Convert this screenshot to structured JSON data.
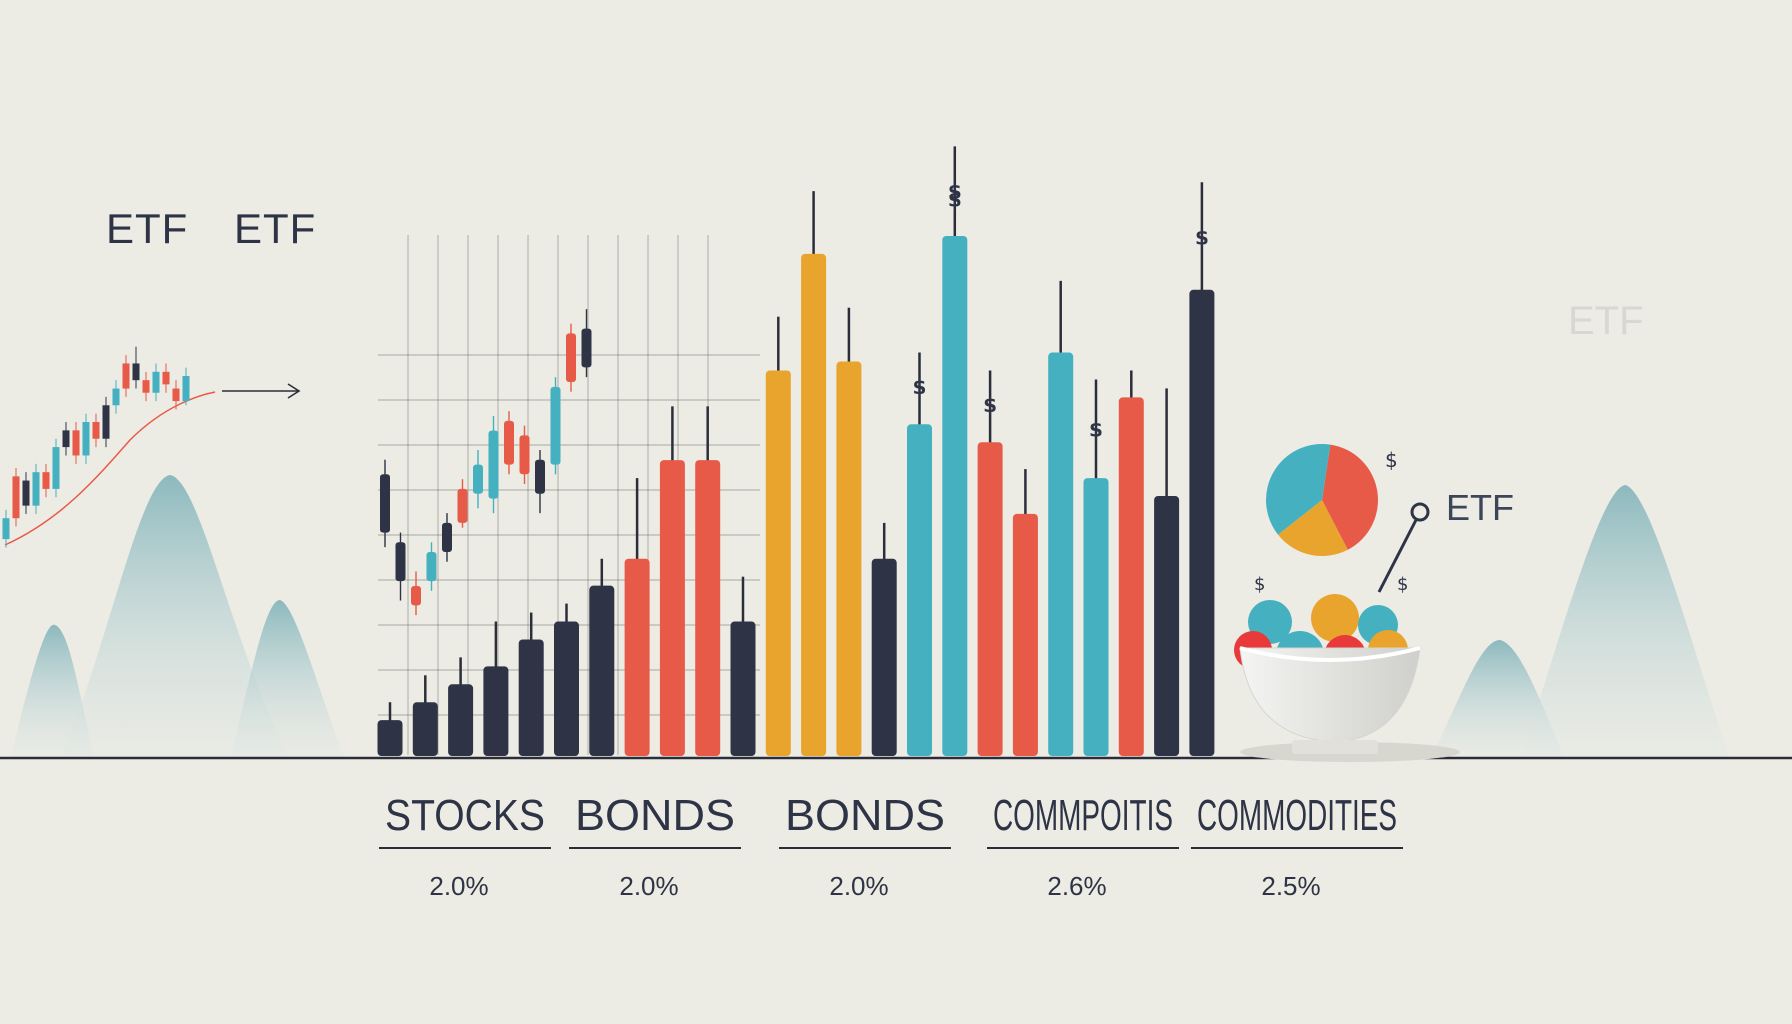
{
  "labels": {
    "etf_left_1": "ETF",
    "etf_left_2": "ETF",
    "etf_right_faded": "ETF",
    "etf_pie": "ETF",
    "dollar_signs": [
      "$",
      "$",
      "$",
      "$",
      "$",
      "$",
      "$",
      "$",
      "$"
    ]
  },
  "colors": {
    "background": "#ecebe4",
    "navy": "#2e3446",
    "red": "#e85a48",
    "orange": "#e9a42d",
    "teal": "#45b1c0",
    "mountain": "#9cc2c6",
    "baseline": "#2b2e3a"
  },
  "chart_data": {
    "type": "bar",
    "x_labels": [
      "STOCKS",
      "BONDS",
      "BONDS",
      "COMMPOITIS",
      "COMMODITIES"
    ],
    "percent_labels": [
      "2.0%",
      "2.0%",
      "2.0%",
      "2.6%",
      "2.5%"
    ],
    "bars": [
      {
        "color": "navy",
        "value": 4,
        "wick": 2
      },
      {
        "color": "navy",
        "value": 6,
        "wick": 3
      },
      {
        "color": "navy",
        "value": 8,
        "wick": 3
      },
      {
        "color": "navy",
        "value": 10,
        "wick": 5
      },
      {
        "color": "navy",
        "value": 13,
        "wick": 3
      },
      {
        "color": "navy",
        "value": 15,
        "wick": 2
      },
      {
        "color": "navy",
        "value": 19,
        "wick": 3
      },
      {
        "color": "red",
        "value": 22,
        "wick": 9
      },
      {
        "color": "red",
        "value": 33,
        "wick": 6
      },
      {
        "color": "red",
        "value": 33,
        "wick": 6
      },
      {
        "color": "navy",
        "value": 15,
        "wick": 5
      },
      {
        "color": "orange",
        "value": 43,
        "wick": 6
      },
      {
        "color": "orange",
        "value": 56,
        "wick": 7
      },
      {
        "color": "orange",
        "value": 44,
        "wick": 6
      },
      {
        "color": "navy",
        "value": 22,
        "wick": 4
      },
      {
        "color": "teal",
        "value": 37,
        "wick": 8,
        "dollar": true
      },
      {
        "color": "teal",
        "value": 58,
        "wick": 10,
        "dollar": true
      },
      {
        "color": "red",
        "value": 35,
        "wick": 8,
        "dollar": true
      },
      {
        "color": "red",
        "value": 27,
        "wick": 5
      },
      {
        "color": "teal",
        "value": 45,
        "wick": 8
      },
      {
        "color": "teal",
        "value": 31,
        "wick": 11,
        "dollar": true
      },
      {
        "color": "red",
        "value": 40,
        "wick": 3
      },
      {
        "color": "navy",
        "value": 29,
        "wick": 12
      },
      {
        "color": "navy",
        "value": 52,
        "wick": 12,
        "dollar": true
      }
    ],
    "candles_main": [
      {
        "o": 60,
        "c": 48,
        "h": 63,
        "l": 45
      },
      {
        "o": 46,
        "c": 38,
        "h": 48,
        "l": 34
      },
      {
        "o": 37,
        "c": 33,
        "h": 40,
        "l": 31
      },
      {
        "o": 38,
        "c": 44,
        "h": 46,
        "l": 36
      },
      {
        "o": 44,
        "c": 50,
        "h": 52,
        "l": 42
      },
      {
        "o": 50,
        "c": 57,
        "h": 59,
        "l": 49
      },
      {
        "o": 56,
        "c": 62,
        "h": 65,
        "l": 53
      },
      {
        "o": 55,
        "c": 69,
        "h": 72,
        "l": 52
      },
      {
        "o": 71,
        "c": 62,
        "h": 73,
        "l": 60
      },
      {
        "o": 68,
        "c": 60,
        "h": 70,
        "l": 58
      },
      {
        "o": 63,
        "c": 56,
        "h": 65,
        "l": 52
      },
      {
        "o": 62,
        "c": 78,
        "h": 80,
        "l": 60
      },
      {
        "o": 79,
        "c": 89,
        "h": 91,
        "l": 77
      },
      {
        "o": 90,
        "c": 82,
        "h": 94,
        "l": 80
      }
    ],
    "candles_small": [
      {
        "o": 50,
        "c": 55,
        "h": 57,
        "l": 48
      },
      {
        "o": 55,
        "c": 65,
        "h": 67,
        "l": 53
      },
      {
        "o": 64,
        "c": 58,
        "h": 66,
        "l": 56
      },
      {
        "o": 58,
        "c": 66,
        "h": 68,
        "l": 56
      },
      {
        "o": 66,
        "c": 62,
        "h": 68,
        "l": 60
      },
      {
        "o": 62,
        "c": 72,
        "h": 74,
        "l": 60
      },
      {
        "o": 72,
        "c": 76,
        "h": 78,
        "l": 70
      },
      {
        "o": 76,
        "c": 70,
        "h": 78,
        "l": 68
      },
      {
        "o": 70,
        "c": 78,
        "h": 80,
        "l": 68
      },
      {
        "o": 78,
        "c": 74,
        "h": 80,
        "l": 72
      },
      {
        "o": 74,
        "c": 82,
        "h": 84,
        "l": 72
      },
      {
        "o": 82,
        "c": 86,
        "h": 88,
        "l": 80
      },
      {
        "o": 86,
        "c": 92,
        "h": 94,
        "l": 84
      },
      {
        "o": 92,
        "c": 88,
        "h": 96,
        "l": 86
      },
      {
        "o": 88,
        "c": 85,
        "h": 90,
        "l": 83
      },
      {
        "o": 85,
        "c": 90,
        "h": 92,
        "l": 83
      },
      {
        "o": 90,
        "c": 87,
        "h": 92,
        "l": 85
      },
      {
        "o": 86,
        "c": 83,
        "h": 88,
        "l": 81
      },
      {
        "o": 83,
        "c": 89,
        "h": 91,
        "l": 82
      }
    ],
    "pie": [
      {
        "color": "red",
        "value": 40
      },
      {
        "color": "orange",
        "value": 22
      },
      {
        "color": "teal",
        "value": 38
      }
    ]
  }
}
